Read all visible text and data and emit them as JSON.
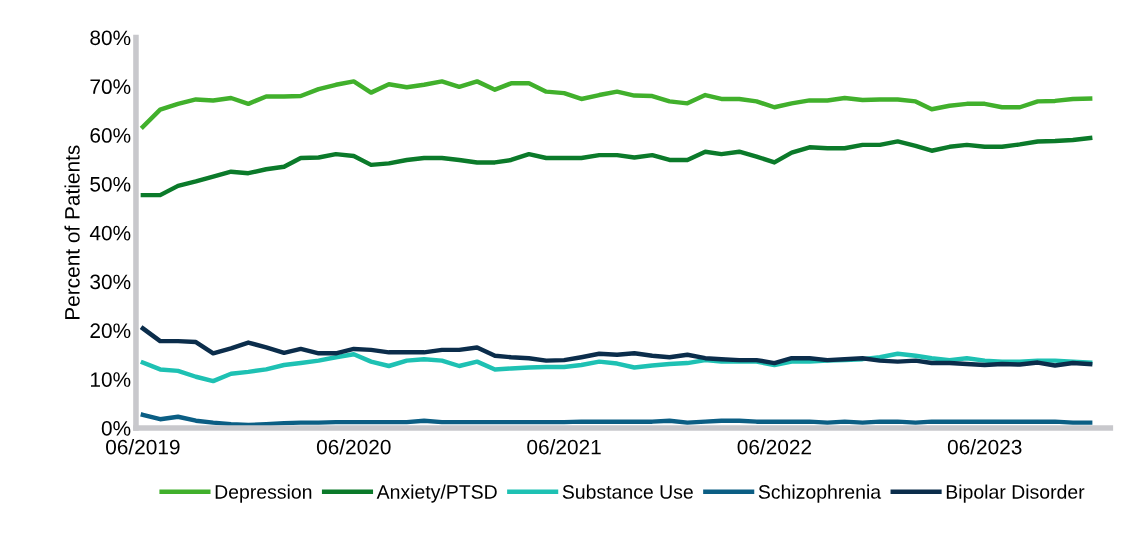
{
  "chart_data": {
    "type": "line",
    "ylabel": "Percent of Patients",
    "x": [
      "2019-06",
      "2019-07",
      "2019-08",
      "2019-09",
      "2019-10",
      "2019-11",
      "2019-12",
      "2020-01",
      "2020-02",
      "2020-03",
      "2020-04",
      "2020-05",
      "2020-06",
      "2020-07",
      "2020-08",
      "2020-09",
      "2020-10",
      "2020-11",
      "2020-12",
      "2021-01",
      "2021-02",
      "2021-03",
      "2021-04",
      "2021-05",
      "2021-06",
      "2021-07",
      "2021-08",
      "2021-09",
      "2021-10",
      "2021-11",
      "2021-12",
      "2022-01",
      "2022-02",
      "2022-03",
      "2022-04",
      "2022-05",
      "2022-06",
      "2022-07",
      "2022-08",
      "2022-09",
      "2022-10",
      "2022-11",
      "2022-12",
      "2023-01",
      "2023-02",
      "2023-03",
      "2023-04",
      "2023-05",
      "2023-06",
      "2023-07",
      "2023-08",
      "2023-09",
      "2023-10",
      "2023-11",
      "2023-12"
    ],
    "series": [
      {
        "name": "Depression",
        "color": "#41b02c",
        "values": [
          61.7,
          65.2,
          66.4,
          67.3,
          67.1,
          67.6,
          66.4,
          67.9,
          67.9,
          68.0,
          69.4,
          70.3,
          71.0,
          68.7,
          70.4,
          69.8,
          70.3,
          71.0,
          69.9,
          71.0,
          69.3,
          70.6,
          70.6,
          68.9,
          68.6,
          67.4,
          68.2,
          68.9,
          68.1,
          68.0,
          66.9,
          66.5,
          68.2,
          67.4,
          67.4,
          66.9,
          65.7,
          66.5,
          67.1,
          67.1,
          67.6,
          67.2,
          67.3,
          67.3,
          66.9,
          65.3,
          66.0,
          66.4,
          66.4,
          65.7,
          65.7,
          66.9,
          67.0,
          67.4,
          67.5
        ]
      },
      {
        "name": "Anxiety/PTSD",
        "color": "#0b7a2a",
        "values": [
          47.7,
          47.7,
          49.6,
          50.5,
          51.5,
          52.5,
          52.2,
          53.0,
          53.5,
          55.3,
          55.4,
          56.1,
          55.7,
          53.9,
          54.2,
          54.9,
          55.3,
          55.3,
          54.9,
          54.4,
          54.4,
          54.9,
          56.1,
          55.3,
          55.3,
          55.3,
          55.9,
          55.9,
          55.4,
          55.9,
          54.9,
          54.9,
          56.6,
          56.1,
          56.6,
          55.6,
          54.4,
          56.4,
          57.5,
          57.3,
          57.3,
          58.0,
          58.0,
          58.7,
          57.8,
          56.8,
          57.6,
          58.0,
          57.6,
          57.6,
          58.1,
          58.7,
          58.8,
          59.0,
          59.4
        ]
      },
      {
        "name": "Substance Use",
        "color": "#1ec1b3",
        "values": [
          13.4,
          12.0,
          11.7,
          10.5,
          9.6,
          11.1,
          11.5,
          12.0,
          12.9,
          13.3,
          13.8,
          14.5,
          15.1,
          13.6,
          12.7,
          13.8,
          14.1,
          13.8,
          12.7,
          13.6,
          12.0,
          12.2,
          12.4,
          12.5,
          12.5,
          12.9,
          13.6,
          13.2,
          12.4,
          12.8,
          13.1,
          13.3,
          13.9,
          13.6,
          13.6,
          13.6,
          12.9,
          13.6,
          13.6,
          13.8,
          13.9,
          14.1,
          14.5,
          15.2,
          14.8,
          14.3,
          13.9,
          14.3,
          13.8,
          13.6,
          13.6,
          13.8,
          13.8,
          13.6,
          13.4
        ]
      },
      {
        "name": "Schizophrenia",
        "color": "#0b5e84",
        "values": [
          2.7,
          1.8,
          2.3,
          1.5,
          1.1,
          0.8,
          0.6,
          0.8,
          1.0,
          1.1,
          1.1,
          1.2,
          1.2,
          1.2,
          1.2,
          1.2,
          1.5,
          1.2,
          1.2,
          1.2,
          1.2,
          1.2,
          1.2,
          1.2,
          1.2,
          1.3,
          1.3,
          1.3,
          1.3,
          1.3,
          1.5,
          1.1,
          1.3,
          1.5,
          1.5,
          1.3,
          1.3,
          1.3,
          1.3,
          1.1,
          1.3,
          1.1,
          1.3,
          1.3,
          1.1,
          1.3,
          1.3,
          1.3,
          1.3,
          1.3,
          1.3,
          1.3,
          1.3,
          1.1,
          1.1
        ]
      },
      {
        "name": "Bipolar Disorder",
        "color": "#0b2d4b",
        "values": [
          20.4,
          17.8,
          17.8,
          17.6,
          15.3,
          16.3,
          17.5,
          16.5,
          15.4,
          16.2,
          15.3,
          15.3,
          16.2,
          16.0,
          15.5,
          15.5,
          15.5,
          16.0,
          16.0,
          16.5,
          14.8,
          14.5,
          14.3,
          13.8,
          13.9,
          14.5,
          15.2,
          15.0,
          15.3,
          14.8,
          14.5,
          15.0,
          14.3,
          14.1,
          13.9,
          13.9,
          13.3,
          14.3,
          14.3,
          13.9,
          14.1,
          14.3,
          13.8,
          13.6,
          13.8,
          13.3,
          13.3,
          13.1,
          12.9,
          13.1,
          13.0,
          13.4,
          12.8,
          13.3,
          13.1
        ]
      }
    ],
    "xlim": [
      "2019-05-20",
      "2024-01-05"
    ],
    "xticks": [
      {
        "value": "2019-06",
        "label": "06/2019"
      },
      {
        "value": "2020-06",
        "label": "06/2020"
      },
      {
        "value": "2021-06",
        "label": "06/2021"
      },
      {
        "value": "2022-06",
        "label": "06/2022"
      },
      {
        "value": "2023-06",
        "label": "06/2023"
      }
    ],
    "ylim": [
      0,
      80
    ],
    "yticks": [
      {
        "value": 0,
        "label": "0%"
      },
      {
        "value": 10,
        "label": "10%"
      },
      {
        "value": 20,
        "label": "20%"
      },
      {
        "value": 30,
        "label": "30%"
      },
      {
        "value": 40,
        "label": "40%"
      },
      {
        "value": 50,
        "label": "50%"
      },
      {
        "value": 60,
        "label": "60%"
      },
      {
        "value": 70,
        "label": "70%"
      },
      {
        "value": 80,
        "label": "80%"
      }
    ],
    "grid": false,
    "legend": "bottom",
    "marker": "none",
    "line_style": "solid"
  }
}
